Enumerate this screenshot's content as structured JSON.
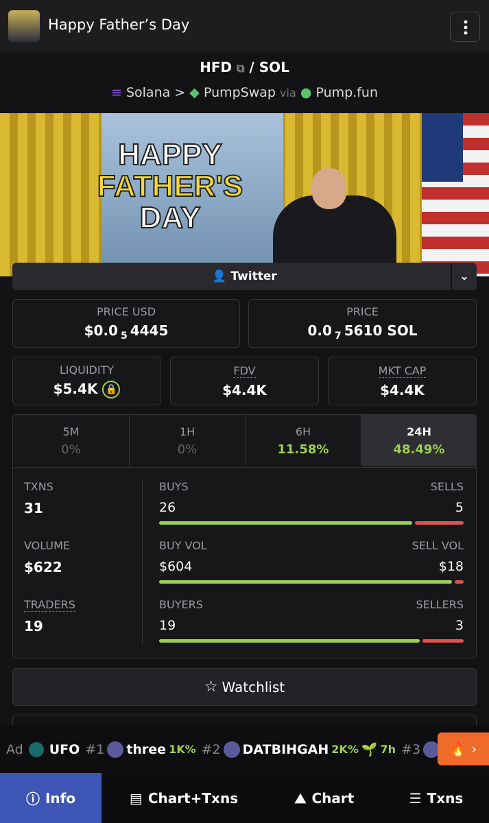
{
  "header": {
    "title": "Happy Father’s Day"
  },
  "pair": {
    "base": "HFD",
    "sep": "/",
    "quote": "SOL",
    "chain": "Solana",
    "arrow": ">",
    "dex": "PumpSwap",
    "via": "via",
    "launchpad": "Pump.fun"
  },
  "banner": {
    "lines": [
      "HAPPY",
      "FATHER'S",
      "DAY"
    ]
  },
  "social": "Twitter",
  "prices": [
    {
      "label": "PRICE USD",
      "prefix": "$0.0",
      "sub": "5",
      "digits": "4445"
    },
    {
      "label": "PRICE",
      "prefix": "0.0",
      "sub": "7",
      "digits": "5610 SOL"
    }
  ],
  "stats": [
    {
      "label": "LIQUIDITY",
      "value": "$5.4K"
    },
    {
      "label": "FDV",
      "value": "$4.4K"
    },
    {
      "label": "MKT CAP",
      "value": "$4.4K"
    }
  ],
  "periods": [
    {
      "label": "5M",
      "change": "0%"
    },
    {
      "label": "1H",
      "change": "0%"
    },
    {
      "label": "6H",
      "change": "11.58%"
    },
    {
      "label": "24H",
      "change": "48.49%"
    }
  ],
  "rows": [
    {
      "label": "TXNS",
      "value": "31",
      "left_label": "BUYS",
      "left": "26",
      "right_label": "SELLS",
      "right": "5"
    },
    {
      "label": "VOLUME",
      "value": "$622",
      "left_label": "BUY VOL",
      "left": "$604",
      "right_label": "SELL VOL",
      "right": "$18"
    },
    {
      "label": "TRADERS",
      "value": "19",
      "left_label": "BUYERS",
      "left": "19",
      "right_label": "SELLERS",
      "right": "3"
    }
  ],
  "watchlist": "Watchlist",
  "ticker": {
    "ad": "Ad",
    "ad_name": "UFO",
    "items": [
      {
        "rank": "#1",
        "name": "three",
        "change": "1K%"
      },
      {
        "rank": "#2",
        "name": "DATBIHGAH",
        "change": "2K%",
        "age": "7h"
      },
      {
        "rank": "#3"
      }
    ]
  },
  "nav": [
    "Info",
    "Chart+Txns",
    "Chart",
    "Txns"
  ]
}
